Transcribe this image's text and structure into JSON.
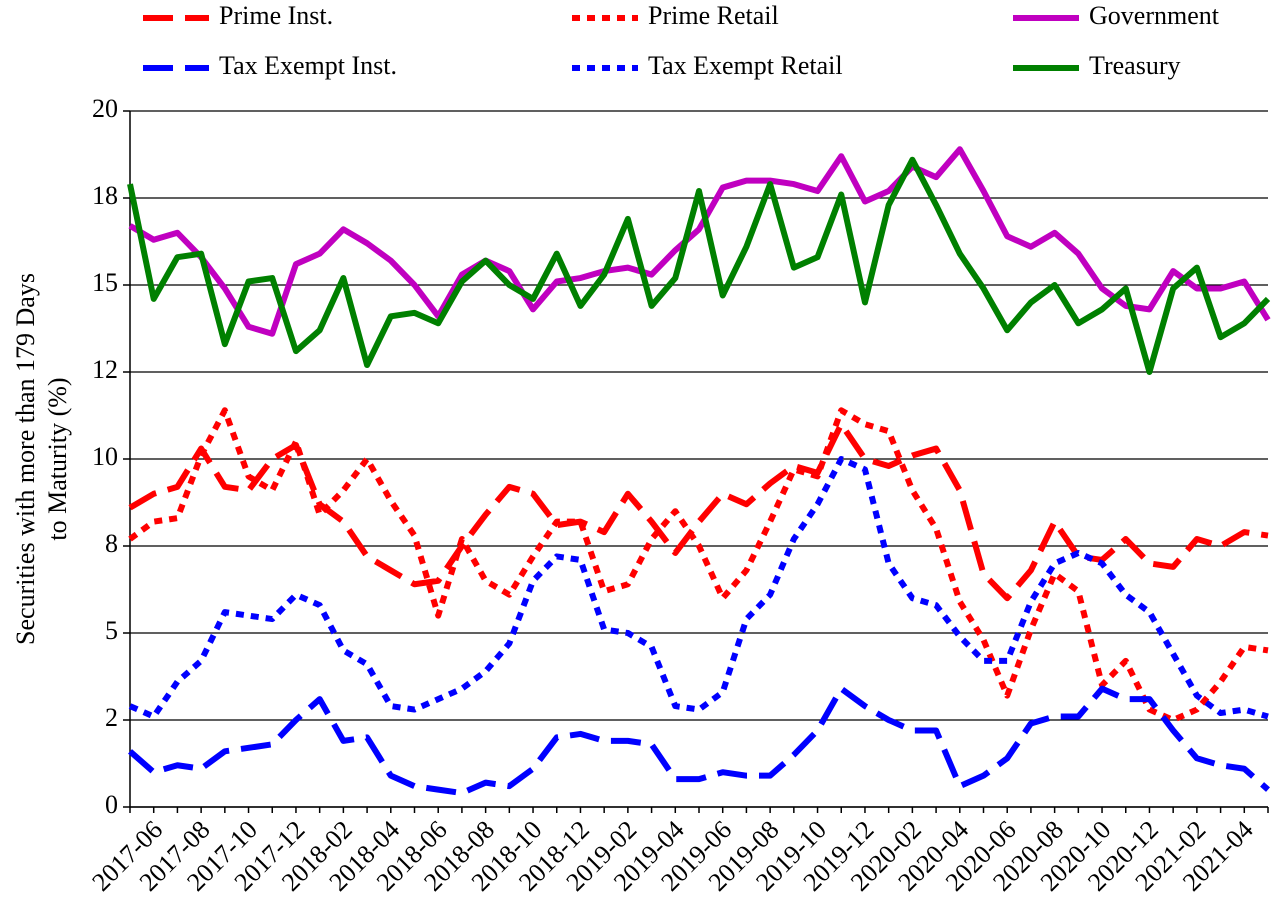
{
  "chart_data": {
    "type": "line",
    "ylabel": [
      "Securities with more than 179 Days",
      "to Maturity (%)"
    ],
    "categories": [
      null,
      "2017-06",
      null,
      "2017-08",
      null,
      "2017-10",
      null,
      "2017-12",
      null,
      "2018-02",
      null,
      "2018-04",
      null,
      "2018-06",
      null,
      "2018-08",
      null,
      "2018-10",
      null,
      "2018-12",
      null,
      "2019-02",
      null,
      "2019-04",
      null,
      "2019-06",
      null,
      "2019-08",
      null,
      "2019-10",
      null,
      "2019-12",
      null,
      "2020-02",
      null,
      "2020-04",
      null,
      "2020-06",
      null,
      "2020-08",
      null,
      "2020-10",
      null,
      "2020-12",
      null,
      "2021-02",
      null,
      "2021-04",
      null
    ],
    "ylim": [
      0,
      20
    ],
    "yticks": [
      0,
      {
        "value": 2.5,
        "label": "2"
      },
      5,
      {
        "value": 7.5,
        "label": "8"
      },
      10,
      {
        "value": 12.5,
        "label": "12"
      },
      15,
      {
        "value": 17.5,
        "label": "18"
      },
      20
    ],
    "grid": true,
    "legend": "top",
    "series": [
      {
        "name": "Prime Inst.",
        "color": "#ff0000",
        "style": "dashed",
        "values": [
          8.6,
          9.0,
          9.2,
          10.3,
          9.2,
          9.1,
          10.0,
          10.4,
          8.7,
          8.2,
          7.2,
          6.8,
          6.4,
          6.5,
          7.5,
          8.4,
          9.2,
          9.0,
          8.1,
          8.2,
          7.9,
          9.0,
          8.2,
          7.3,
          8.2,
          9.0,
          8.7,
          9.3,
          9.8,
          9.6,
          11.0,
          10.0,
          9.8,
          10.1,
          10.3,
          9.1,
          6.7,
          6.0,
          6.8,
          8.2,
          7.2,
          7.1,
          7.7,
          7.0,
          6.9,
          7.7,
          7.5,
          7.9,
          7.8
        ]
      },
      {
        "name": "Prime Retail",
        "color": "#ff0000",
        "style": "dotted",
        "values": [
          7.7,
          8.2,
          8.3,
          10.1,
          11.4,
          9.5,
          9.1,
          10.5,
          8.4,
          9.1,
          10.0,
          8.8,
          7.8,
          5.5,
          7.7,
          6.5,
          6.1,
          7.2,
          8.2,
          8.2,
          6.2,
          6.4,
          7.7,
          8.5,
          7.5,
          6.0,
          6.8,
          8.2,
          9.7,
          9.5,
          11.4,
          11.0,
          10.8,
          9.1,
          8.0,
          5.9,
          4.8,
          3.2,
          5.1,
          6.7,
          6.2,
          3.5,
          4.2,
          2.8,
          2.5,
          2.8,
          3.6,
          4.6,
          4.5
        ]
      },
      {
        "name": "Government",
        "color": "#c000c0",
        "style": "solid",
        "values": [
          16.7,
          16.3,
          16.5,
          15.8,
          14.9,
          13.8,
          13.6,
          15.6,
          15.9,
          16.6,
          16.2,
          15.7,
          15.0,
          14.1,
          15.3,
          15.7,
          15.4,
          14.3,
          15.1,
          15.2,
          15.4,
          15.5,
          15.3,
          16.0,
          16.6,
          17.8,
          18.0,
          18.0,
          17.9,
          17.7,
          18.7,
          17.4,
          17.7,
          18.4,
          18.1,
          18.9,
          17.7,
          16.4,
          16.1,
          16.5,
          15.9,
          14.9,
          14.4,
          14.3,
          15.4,
          14.9,
          14.9,
          15.1,
          14.0
        ]
      },
      {
        "name": "Tax Exempt Inst.",
        "color": "#0000ff",
        "style": "dashed",
        "values": [
          1.6,
          1.0,
          1.2,
          1.1,
          1.6,
          1.7,
          1.8,
          2.5,
          3.1,
          1.9,
          2.0,
          0.9,
          0.6,
          0.5,
          0.4,
          0.7,
          0.6,
          1.1,
          2.0,
          2.1,
          1.9,
          1.9,
          1.8,
          0.8,
          0.8,
          1.0,
          0.9,
          0.9,
          1.5,
          2.2,
          3.4,
          2.9,
          2.5,
          2.2,
          2.2,
          0.6,
          0.9,
          1.4,
          2.4,
          2.6,
          2.6,
          3.4,
          3.1,
          3.1,
          2.2,
          1.4,
          1.2,
          1.1,
          0.5
        ]
      },
      {
        "name": "Tax Exempt Retail",
        "color": "#0000ff",
        "style": "dotted",
        "values": [
          2.9,
          2.6,
          3.6,
          4.2,
          5.6,
          5.5,
          5.4,
          6.1,
          5.8,
          4.5,
          4.1,
          2.9,
          2.8,
          3.1,
          3.4,
          3.9,
          4.7,
          6.5,
          7.2,
          7.1,
          5.1,
          5.0,
          4.6,
          2.9,
          2.8,
          3.3,
          5.4,
          6.1,
          7.7,
          8.7,
          10.0,
          9.7,
          7.0,
          6.0,
          5.8,
          4.9,
          4.2,
          4.2,
          5.9,
          7.0,
          7.3,
          7.0,
          6.1,
          5.6,
          4.4,
          3.2,
          2.7,
          2.8,
          2.6
        ]
      },
      {
        "name": "Treasury",
        "color": "#008000",
        "style": "solid",
        "values": [
          17.9,
          14.6,
          15.8,
          15.9,
          13.3,
          15.1,
          15.2,
          13.1,
          13.7,
          15.2,
          12.7,
          14.1,
          14.2,
          13.9,
          15.1,
          15.7,
          15.0,
          14.6,
          15.9,
          14.4,
          15.3,
          16.9,
          14.4,
          15.2,
          17.7,
          14.7,
          16.1,
          17.9,
          15.5,
          15.8,
          17.6,
          14.5,
          17.3,
          18.6,
          17.3,
          15.9,
          14.9,
          13.7,
          14.5,
          15.0,
          13.9,
          14.3,
          14.9,
          12.5,
          14.9,
          15.5,
          13.5,
          13.9,
          14.6
        ]
      }
    ]
  }
}
